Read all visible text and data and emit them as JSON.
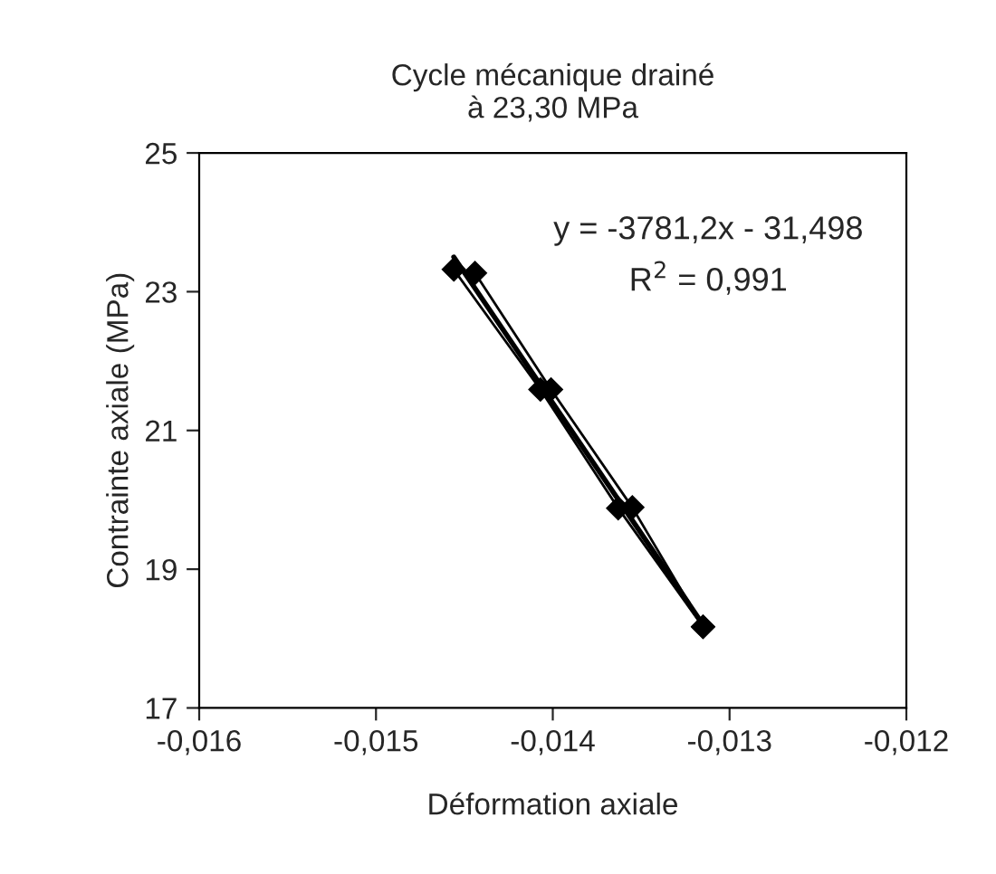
{
  "chart_data": {
    "type": "line",
    "title": "Cycle mécanique drainé\nà 23,30 MPa",
    "xlabel": "Déformation axiale",
    "ylabel": "Contrainte axiale (MPa)",
    "series": [
      {
        "color": "#000000",
        "marker": "diamond",
        "x": [
          -0.01315,
          -0.01363,
          -0.01407,
          -0.01456
        ],
        "values": [
          18.17,
          19.88,
          21.59,
          23.32
        ]
      },
      {
        "color": "#000000",
        "marker": "diamond",
        "x": [
          -0.01444,
          -0.01401,
          -0.01355,
          -0.01315
        ],
        "values": [
          23.27,
          21.59,
          19.89,
          18.17
        ]
      },
      {
        "color": "#000000",
        "marker": "none",
        "x": [
          -0.01456,
          -0.01315
        ],
        "values": [
          23.5,
          18.2
        ]
      }
    ],
    "annotations": [
      "y = -3781,2x - 31,498",
      "R$^{2}$ = 0,991"
    ],
    "xlim": [
      -0.016,
      -0.012
    ],
    "xticks": [
      {
        "value": -0.016,
        "label": "-0,016"
      },
      {
        "value": -0.015,
        "label": "-0,015"
      },
      {
        "value": -0.014,
        "label": "-0,014"
      },
      {
        "value": -0.013,
        "label": "-0,013"
      },
      {
        "value": -0.012,
        "label": "-0,012"
      }
    ],
    "ylim": [
      17,
      25
    ],
    "yticks": [
      17,
      19,
      21,
      23,
      25
    ]
  }
}
